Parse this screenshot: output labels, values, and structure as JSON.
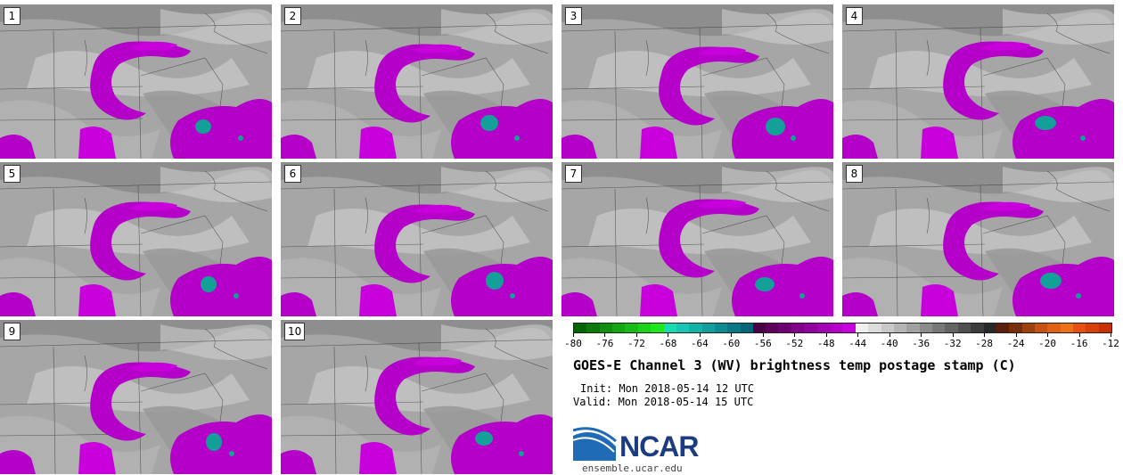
{
  "panels": [
    {
      "label": "1"
    },
    {
      "label": "2"
    },
    {
      "label": "3"
    },
    {
      "label": "4"
    },
    {
      "label": "5"
    },
    {
      "label": "6"
    },
    {
      "label": "7"
    },
    {
      "label": "8"
    },
    {
      "label": "9"
    },
    {
      "label": "10"
    }
  ],
  "colorbar": {
    "colors": [
      "#006400",
      "#0a7a0a",
      "#0e900e",
      "#12a612",
      "#16bc16",
      "#1ad21a",
      "#1ee81e",
      "#1adcb4",
      "#16c8b4",
      "#12b4a8",
      "#0ea09c",
      "#0a8c90",
      "#087884",
      "#066478",
      "#4a0046",
      "#5c005c",
      "#6e0072",
      "#800088",
      "#92009e",
      "#a400b4",
      "#b600ca",
      "#c800e0",
      "#f0f0f0",
      "#dcdcdc",
      "#c8c8c8",
      "#b4b4b4",
      "#a0a0a0",
      "#8c8c8c",
      "#787878",
      "#646464",
      "#505050",
      "#3c3c3c",
      "#282828",
      "#5a1e0a",
      "#7a2e0c",
      "#a0400e",
      "#c85010",
      "#e06014",
      "#f07018",
      "#e85010",
      "#d84008",
      "#c83000"
    ],
    "tick_labels": [
      "-80",
      "-76",
      "-72",
      "-68",
      "-64",
      "-60",
      "-56",
      "-52",
      "-48",
      "-44",
      "-40",
      "-36",
      "-32",
      "-28",
      "-24",
      "-20",
      "-16",
      "-12"
    ]
  },
  "title": "GOES-E Channel 3 (WV) brightness temp postage stamp (C)",
  "init": "Init: Mon 2018-05-14 12 UTC",
  "valid": "Valid: Mon 2018-05-14 15 UTC",
  "logo": {
    "name": "NCAR"
  },
  "site": "ensemble.ucar.edu"
}
